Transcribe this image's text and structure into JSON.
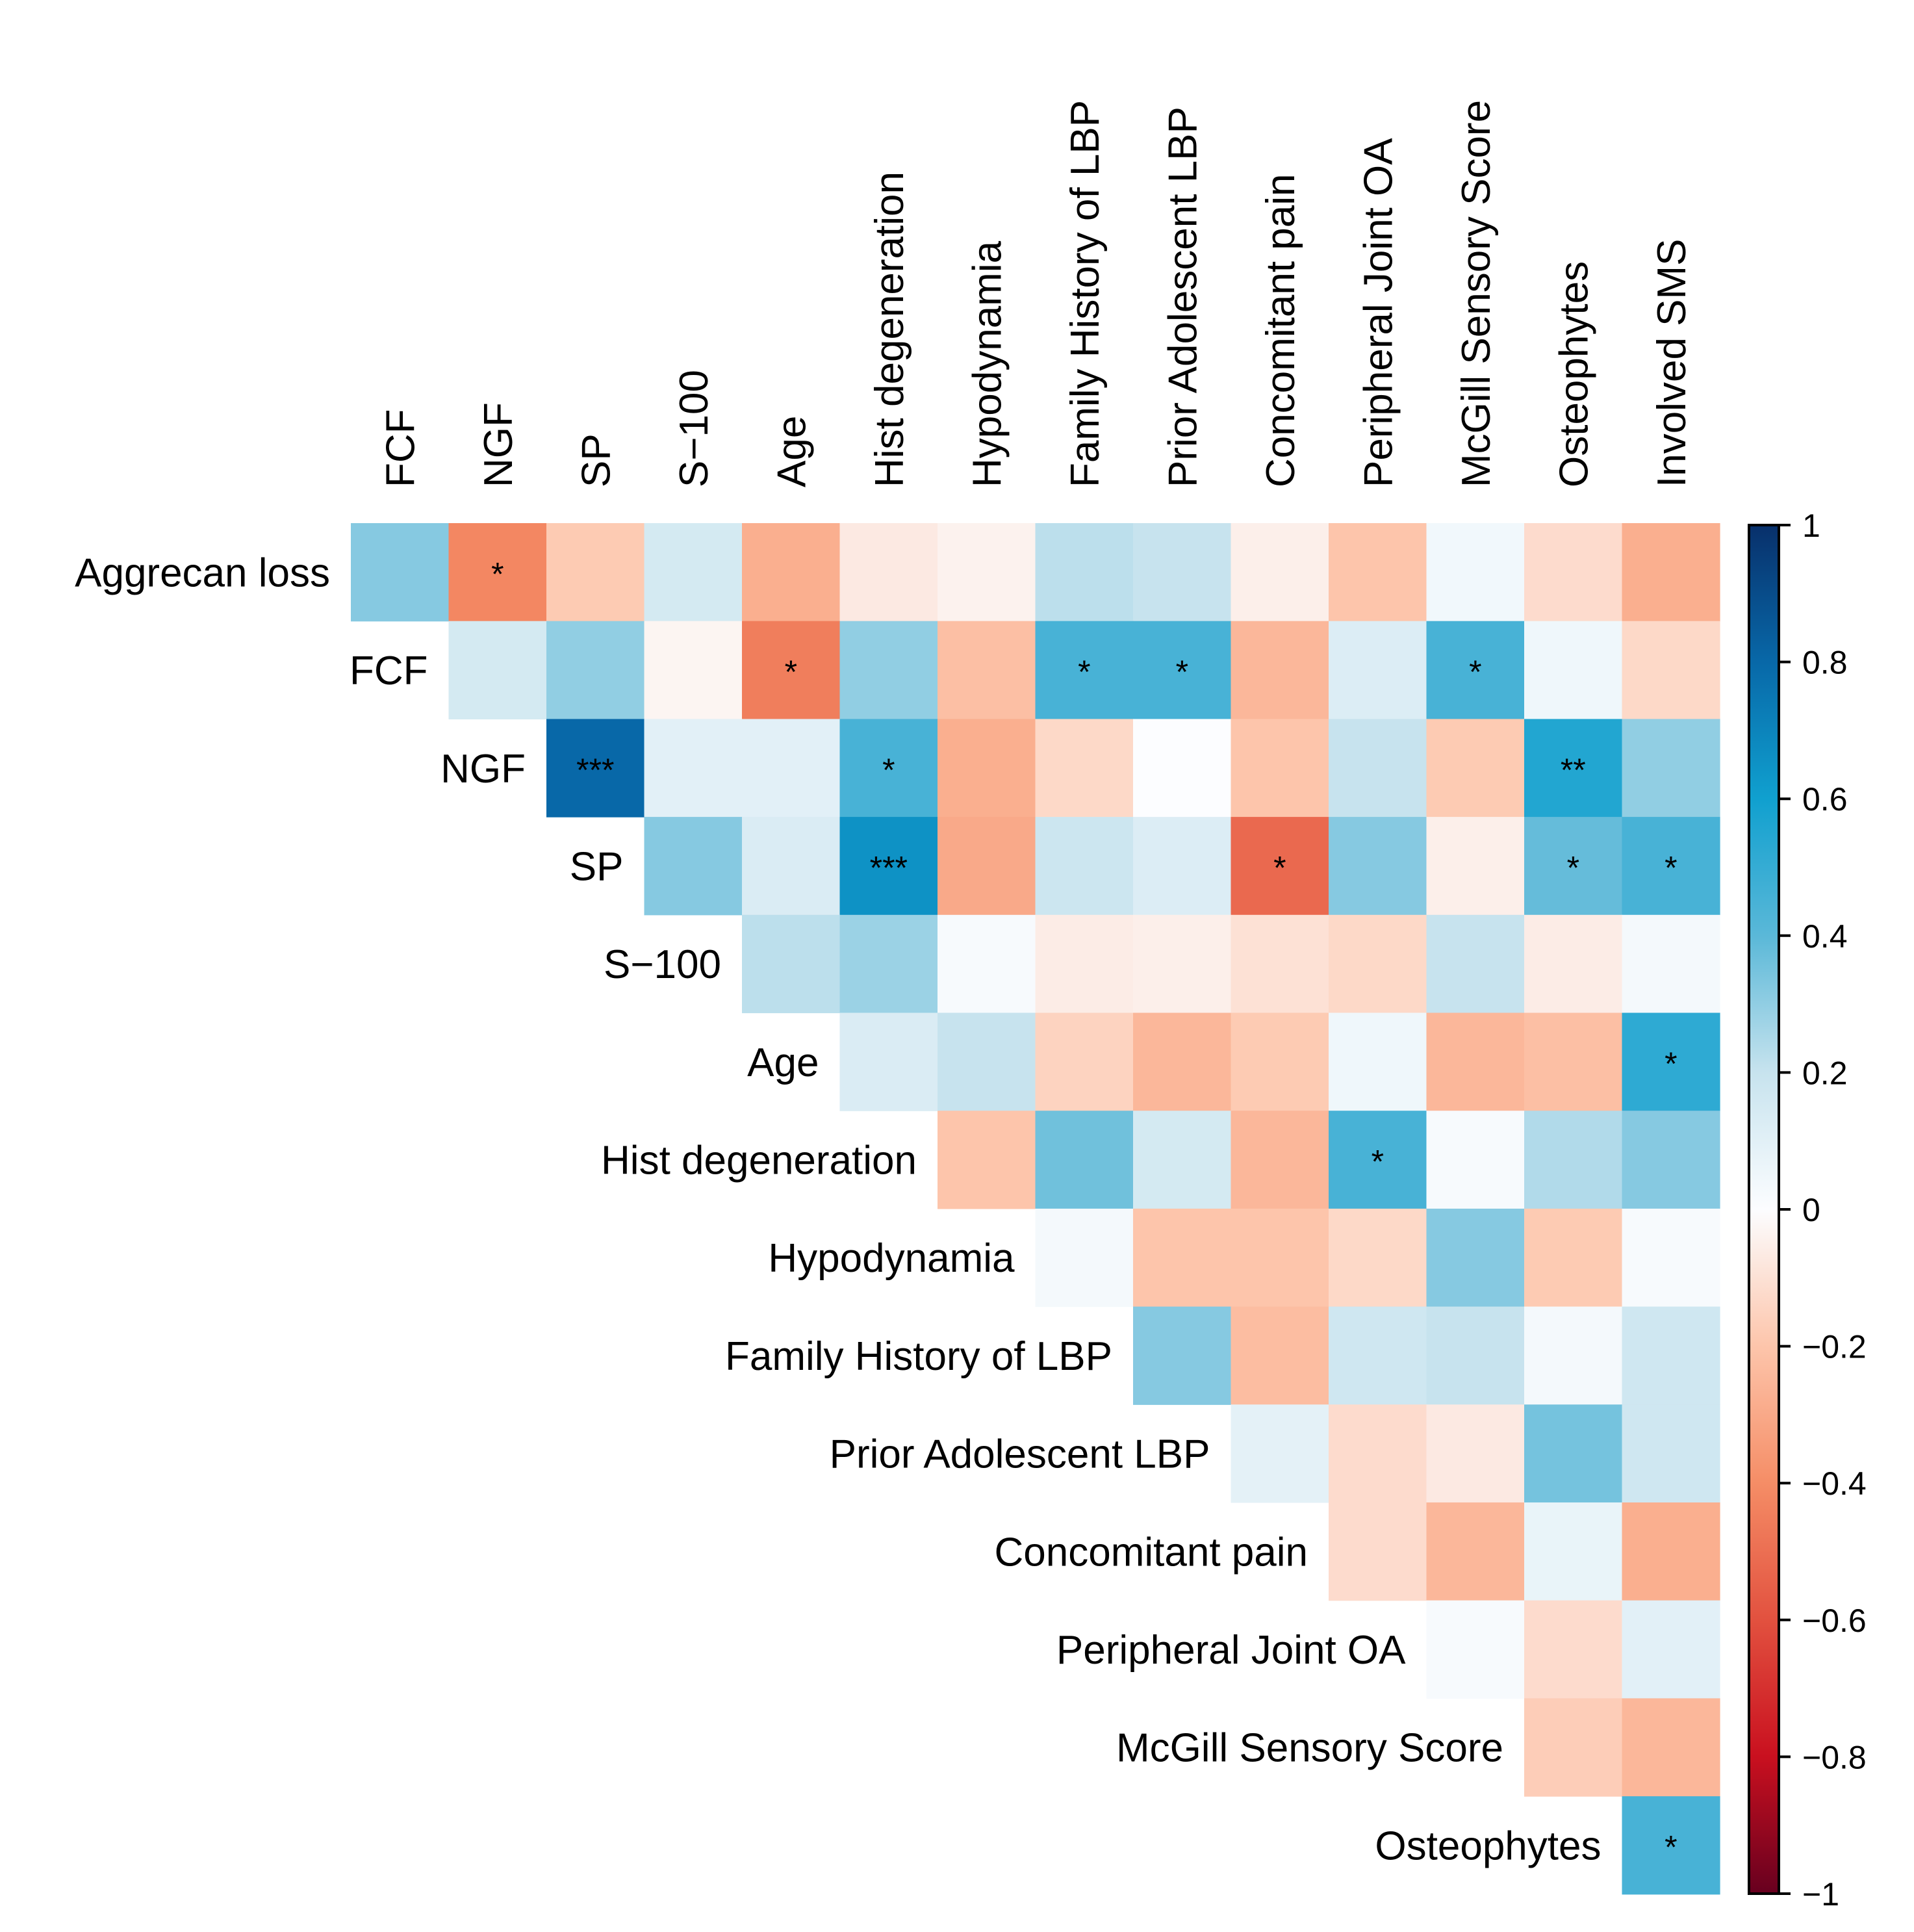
{
  "chart_data": {
    "type": "heatmap",
    "subtype": "upper-triangular correlation matrix",
    "row_labels": [
      "Aggrecan loss",
      "FCF",
      "NGF",
      "SP",
      "S−100",
      "Age",
      "Hist degeneration",
      "Hypodynamia",
      "Family History of LBP",
      "Prior Adolescent LBP",
      "Concomitant pain",
      "Peripheral Joint OA",
      "McGill Sensory Score",
      "Osteophytes"
    ],
    "column_labels": [
      "FCF",
      "NGF",
      "SP",
      "S−100",
      "Age",
      "Hist degeneration",
      "Hypodynamia",
      "Family History of LBP",
      "Prior Adolescent LBP",
      "Concomitant pain",
      "Peripheral Joint OA",
      "McGill Sensory Score",
      "Osteophytes",
      "Involved SMS"
    ],
    "values": [
      [
        0.32,
        -0.42,
        -0.18,
        0.15,
        -0.28,
        -0.07,
        -0.04,
        0.22,
        0.2,
        -0.05,
        -0.2,
        0.04,
        -0.12,
        -0.28
      ],
      [
        null,
        0.15,
        0.3,
        -0.03,
        -0.45,
        0.3,
        -0.22,
        0.45,
        0.45,
        -0.25,
        0.12,
        0.45,
        0.05,
        -0.13
      ],
      [
        null,
        null,
        0.8,
        0.1,
        0.1,
        0.45,
        -0.28,
        -0.13,
        0.0,
        -0.2,
        0.2,
        -0.18,
        0.55,
        0.3
      ],
      [
        null,
        null,
        null,
        0.32,
        0.13,
        0.65,
        -0.3,
        0.18,
        0.12,
        -0.52,
        0.32,
        -0.05,
        0.38,
        0.45
      ],
      [
        null,
        null,
        null,
        null,
        0.22,
        0.28,
        0.02,
        -0.06,
        -0.05,
        -0.1,
        -0.13,
        0.2,
        -0.06,
        0.03
      ],
      [
        null,
        null,
        null,
        null,
        null,
        0.13,
        0.2,
        -0.15,
        -0.25,
        -0.18,
        0.05,
        -0.25,
        -0.22,
        0.52
      ],
      [
        null,
        null,
        null,
        null,
        null,
        null,
        -0.2,
        0.36,
        0.15,
        -0.25,
        0.45,
        0.02,
        0.24,
        0.32
      ],
      [
        null,
        null,
        null,
        null,
        null,
        null,
        null,
        0.03,
        -0.2,
        -0.2,
        -0.13,
        0.32,
        -0.18,
        0.02
      ],
      [
        null,
        null,
        null,
        null,
        null,
        null,
        null,
        null,
        0.32,
        -0.23,
        0.17,
        0.2,
        0.03,
        0.17
      ],
      [
        null,
        null,
        null,
        null,
        null,
        null,
        null,
        null,
        null,
        0.09,
        -0.12,
        -0.07,
        0.35,
        0.17
      ],
      [
        null,
        null,
        null,
        null,
        null,
        null,
        null,
        null,
        null,
        null,
        -0.12,
        -0.25,
        0.07,
        -0.28
      ],
      [
        null,
        null,
        null,
        null,
        null,
        null,
        null,
        null,
        null,
        null,
        null,
        0.02,
        -0.12,
        0.1
      ],
      [
        null,
        null,
        null,
        null,
        null,
        null,
        null,
        null,
        null,
        null,
        null,
        null,
        -0.17,
        -0.25
      ],
      [
        null,
        null,
        null,
        null,
        null,
        null,
        null,
        null,
        null,
        null,
        null,
        null,
        null,
        0.45
      ]
    ],
    "significance": [
      [
        "",
        "*",
        "",
        "",
        "",
        "",
        "",
        "",
        "",
        "",
        "",
        "",
        "",
        ""
      ],
      [
        "",
        "",
        "",
        "",
        "*",
        "",
        "",
        "*",
        "*",
        "",
        "",
        "*",
        "",
        ""
      ],
      [
        "",
        "",
        "***",
        "",
        "",
        "*",
        "",
        "",
        "",
        "",
        "",
        "",
        "**",
        ""
      ],
      [
        "",
        "",
        "",
        "",
        "",
        "***",
        "",
        "",
        "",
        "*",
        "",
        "",
        "*",
        "*"
      ],
      [
        "",
        "",
        "",
        "",
        "",
        "",
        "",
        "",
        "",
        "",
        "",
        "",
        "",
        ""
      ],
      [
        "",
        "",
        "",
        "",
        "",
        "",
        "",
        "",
        "",
        "",
        "",
        "",
        "",
        "*"
      ],
      [
        "",
        "",
        "",
        "",
        "",
        "",
        "",
        "",
        "",
        "",
        "*",
        "",
        "",
        ""
      ],
      [
        "",
        "",
        "",
        "",
        "",
        "",
        "",
        "",
        "",
        "",
        "",
        "",
        "",
        ""
      ],
      [
        "",
        "",
        "",
        "",
        "",
        "",
        "",
        "",
        "",
        "",
        "",
        "",
        "",
        ""
      ],
      [
        "",
        "",
        "",
        "",
        "",
        "",
        "",
        "",
        "",
        "",
        "",
        "",
        "",
        ""
      ],
      [
        "",
        "",
        "",
        "",
        "",
        "",
        "",
        "",
        "",
        "",
        "",
        "",
        "",
        ""
      ],
      [
        "",
        "",
        "",
        "",
        "",
        "",
        "",
        "",
        "",
        "",
        "",
        "",
        "",
        ""
      ],
      [
        "",
        "",
        "",
        "",
        "",
        "",
        "",
        "",
        "",
        "",
        "",
        "",
        "",
        ""
      ],
      [
        "",
        "",
        "",
        "",
        "",
        "",
        "",
        "",
        "",
        "",
        "",
        "",
        "",
        "*"
      ]
    ],
    "color_scale": {
      "range": [
        -1,
        1
      ],
      "ticks": [
        "1",
        "0.8",
        "0.6",
        "0.4",
        "0.2",
        "0",
        "−0.2",
        "−0.4",
        "−0.6",
        "−0.8",
        "−1"
      ],
      "stops": [
        {
          "v": -1.0,
          "color": "#67001f"
        },
        {
          "v": -0.8,
          "color": "#c9101f"
        },
        {
          "v": -0.6,
          "color": "#e2513f"
        },
        {
          "v": -0.4,
          "color": "#f58d66"
        },
        {
          "v": -0.2,
          "color": "#fdc5ab"
        },
        {
          "v": 0.0,
          "color": "#fcfdff"
        },
        {
          "v": 0.2,
          "color": "#c7e3ee"
        },
        {
          "v": 0.4,
          "color": "#5ab8d8"
        },
        {
          "v": 0.6,
          "color": "#10a0cf"
        },
        {
          "v": 0.8,
          "color": "#0868a8"
        },
        {
          "v": 1.0,
          "color": "#08306b"
        }
      ]
    },
    "legend_position": "right"
  }
}
